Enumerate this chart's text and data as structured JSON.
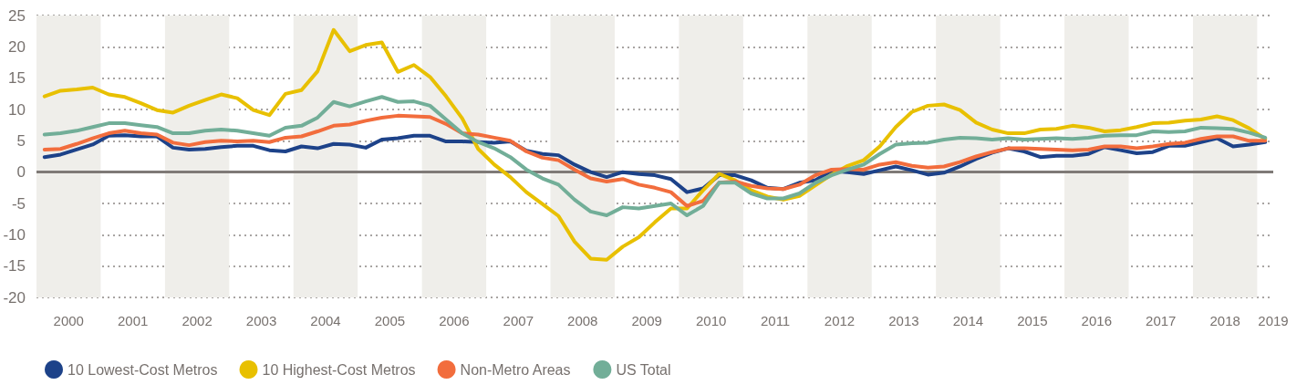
{
  "chart_data": {
    "type": "line",
    "x": [
      2000.125,
      2000.375,
      2000.625,
      2000.875,
      2001.125,
      2001.375,
      2001.625,
      2001.875,
      2002.125,
      2002.375,
      2002.625,
      2002.875,
      2003.125,
      2003.375,
      2003.625,
      2003.875,
      2004.125,
      2004.375,
      2004.625,
      2004.875,
      2005.125,
      2005.375,
      2005.625,
      2005.875,
      2006.125,
      2006.375,
      2006.625,
      2006.875,
      2007.125,
      2007.375,
      2007.625,
      2007.875,
      2008.125,
      2008.375,
      2008.625,
      2008.875,
      2009.125,
      2009.375,
      2009.625,
      2009.875,
      2010.125,
      2010.375,
      2010.625,
      2010.875,
      2011.125,
      2011.375,
      2011.625,
      2011.875,
      2012.125,
      2012.375,
      2012.625,
      2012.875,
      2013.125,
      2013.375,
      2013.625,
      2013.875,
      2014.125,
      2014.375,
      2014.625,
      2014.875,
      2015.125,
      2015.375,
      2015.625,
      2015.875,
      2016.125,
      2016.375,
      2016.625,
      2016.875,
      2017.125,
      2017.375,
      2017.625,
      2017.875,
      2018.125,
      2018.375,
      2018.625,
      2018.875,
      2019.125
    ],
    "series": [
      {
        "name": "10 Lowest-Cost Metros",
        "color": "#1d4289",
        "values": [
          2.4,
          2.8,
          3.6,
          4.4,
          5.8,
          5.9,
          5.7,
          5.7,
          3.9,
          3.6,
          3.7,
          4.0,
          4.2,
          4.2,
          3.5,
          3.3,
          4.1,
          3.8,
          4.5,
          4.4,
          3.9,
          5.2,
          5.4,
          5.8,
          5.8,
          4.9,
          4.9,
          4.8,
          4.7,
          4.9,
          3.4,
          2.9,
          2.7,
          1.2,
          0.0,
          -0.8,
          0.0,
          -0.3,
          -0.5,
          -1.1,
          -3.2,
          -2.6,
          -0.5,
          -0.5,
          -1.3,
          -2.5,
          -2.7,
          -1.7,
          -1.3,
          0.2,
          0.0,
          -0.3,
          0.3,
          0.9,
          0.3,
          -0.4,
          -0.1,
          0.9,
          2.1,
          3.1,
          3.8,
          3.3,
          2.4,
          2.6,
          2.6,
          2.9,
          4.0,
          3.5,
          3.0,
          3.2,
          4.2,
          4.2,
          4.8,
          5.4,
          4.1,
          4.4,
          4.8
        ]
      },
      {
        "name": "10 Highest-Cost Metros",
        "color": "#e8c000",
        "values": [
          12.1,
          13.0,
          13.2,
          13.5,
          12.4,
          12.0,
          11.0,
          9.9,
          9.5,
          10.6,
          11.5,
          12.4,
          11.8,
          9.9,
          9.1,
          12.5,
          13.1,
          16.1,
          22.7,
          19.3,
          20.3,
          20.7,
          16.0,
          17.1,
          15.2,
          12.1,
          8.6,
          3.7,
          1.2,
          -0.8,
          -3.2,
          -5.1,
          -7.0,
          -11.1,
          -13.8,
          -14.0,
          -11.9,
          -10.4,
          -8.0,
          -5.8,
          -5.8,
          -2.9,
          -0.3,
          -1.3,
          -2.9,
          -3.9,
          -4.4,
          -3.8,
          -2.1,
          -0.4,
          1.0,
          1.9,
          4.1,
          7.2,
          9.6,
          10.6,
          10.8,
          9.9,
          7.9,
          6.8,
          6.2,
          6.2,
          6.8,
          6.9,
          7.4,
          7.1,
          6.5,
          6.7,
          7.2,
          7.8,
          7.9,
          8.2,
          8.4,
          8.9,
          8.3,
          7.0,
          5.3
        ]
      },
      {
        "name": "Non-Metro Areas",
        "color": "#f26d3d",
        "values": [
          3.6,
          3.7,
          4.5,
          5.4,
          6.2,
          6.6,
          6.2,
          6.0,
          4.7,
          4.3,
          4.8,
          5.0,
          4.9,
          5.0,
          4.8,
          5.5,
          5.7,
          6.5,
          7.4,
          7.6,
          8.2,
          8.7,
          9.0,
          8.9,
          8.8,
          7.7,
          6.2,
          6.0,
          5.5,
          5.0,
          3.3,
          2.3,
          1.9,
          0.4,
          -1.0,
          -1.5,
          -1.1,
          -2.0,
          -2.5,
          -3.2,
          -5.4,
          -4.6,
          -1.7,
          -1.5,
          -2.2,
          -2.6,
          -2.7,
          -2.0,
          -0.5,
          0.4,
          0.5,
          0.4,
          1.2,
          1.6,
          1.0,
          0.7,
          0.9,
          1.6,
          2.5,
          3.2,
          3.8,
          3.8,
          3.7,
          3.6,
          3.5,
          3.6,
          4.1,
          4.1,
          3.8,
          4.1,
          4.5,
          4.7,
          5.3,
          5.7,
          5.7,
          5.0,
          5.0
        ]
      },
      {
        "name": "US Total",
        "color": "#72ae98",
        "values": [
          6.0,
          6.2,
          6.6,
          7.2,
          7.8,
          7.8,
          7.5,
          7.2,
          6.2,
          6.2,
          6.6,
          6.8,
          6.6,
          6.2,
          5.8,
          7.1,
          7.4,
          8.7,
          11.2,
          10.5,
          11.3,
          12.0,
          11.2,
          11.3,
          10.6,
          8.4,
          6.2,
          4.8,
          3.8,
          2.4,
          0.4,
          -1.0,
          -2.0,
          -4.4,
          -6.3,
          -6.9,
          -5.6,
          -5.8,
          -5.4,
          -5.0,
          -6.9,
          -5.4,
          -1.7,
          -1.7,
          -3.4,
          -4.2,
          -4.2,
          -3.4,
          -1.7,
          -0.5,
          0.4,
          1.2,
          2.9,
          4.4,
          4.6,
          4.7,
          5.2,
          5.5,
          5.4,
          5.2,
          5.4,
          5.2,
          5.3,
          5.4,
          5.3,
          5.5,
          5.8,
          5.9,
          5.9,
          6.5,
          6.4,
          6.5,
          7.1,
          7.0,
          6.9,
          6.3,
          5.5
        ]
      }
    ],
    "xlim": [
      2000,
      2019.25
    ],
    "xticks": [
      {
        "value": 2000.5,
        "label": "2000"
      },
      {
        "value": 2001.5,
        "label": "2001"
      },
      {
        "value": 2002.5,
        "label": "2002"
      },
      {
        "value": 2003.5,
        "label": "2003"
      },
      {
        "value": 2004.5,
        "label": "2004"
      },
      {
        "value": 2005.5,
        "label": "2005"
      },
      {
        "value": 2006.5,
        "label": "2006"
      },
      {
        "value": 2007.5,
        "label": "2007"
      },
      {
        "value": 2008.5,
        "label": "2008"
      },
      {
        "value": 2009.5,
        "label": "2009"
      },
      {
        "value": 2010.5,
        "label": "2010"
      },
      {
        "value": 2011.5,
        "label": "2011"
      },
      {
        "value": 2012.5,
        "label": "2012"
      },
      {
        "value": 2013.5,
        "label": "2013"
      },
      {
        "value": 2014.5,
        "label": "2014"
      },
      {
        "value": 2015.5,
        "label": "2015"
      },
      {
        "value": 2016.5,
        "label": "2016"
      },
      {
        "value": 2017.5,
        "label": "2017"
      },
      {
        "value": 2018.5,
        "label": "2018"
      },
      {
        "value": 2019.25,
        "label": "2019"
      }
    ],
    "ylim": [
      -20,
      25
    ],
    "yticks": [
      -20,
      -15,
      -10,
      -5,
      0,
      5,
      10,
      15,
      20,
      25
    ],
    "grid": "y",
    "marker": "none",
    "legend": "bottom",
    "ref_lines": [
      {
        "axis": "y",
        "value": 0,
        "color": "#7f7a77"
      }
    ],
    "bands": [
      {
        "axis": "x",
        "from": 2000,
        "to": 2001,
        "color": "#efeeea"
      },
      {
        "axis": "x",
        "from": 2002,
        "to": 2003,
        "color": "#efeeea"
      },
      {
        "axis": "x",
        "from": 2004,
        "to": 2005,
        "color": "#efeeea"
      },
      {
        "axis": "x",
        "from": 2006,
        "to": 2007,
        "color": "#efeeea"
      },
      {
        "axis": "x",
        "from": 2008,
        "to": 2009,
        "color": "#efeeea"
      },
      {
        "axis": "x",
        "from": 2010,
        "to": 2011,
        "color": "#efeeea"
      },
      {
        "axis": "x",
        "from": 2012,
        "to": 2013,
        "color": "#efeeea"
      },
      {
        "axis": "x",
        "from": 2014,
        "to": 2015,
        "color": "#efeeea"
      },
      {
        "axis": "x",
        "from": 2016,
        "to": 2017,
        "color": "#efeeea"
      },
      {
        "axis": "x",
        "from": 2018,
        "to": 2019,
        "color": "#efeeea"
      }
    ]
  }
}
